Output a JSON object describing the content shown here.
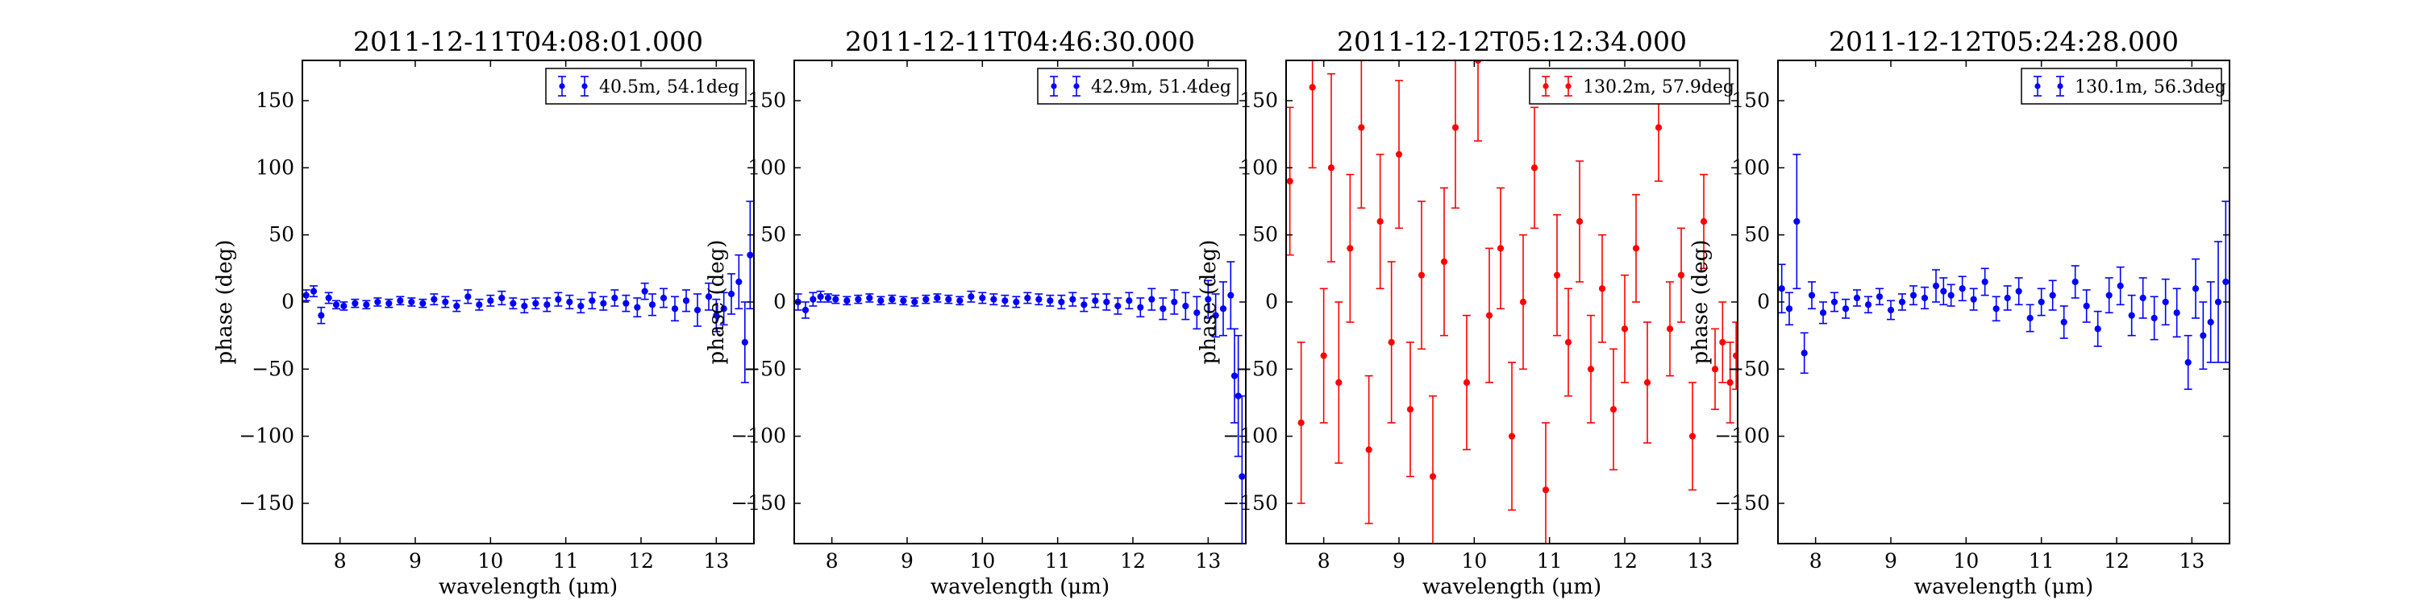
{
  "figure": {
    "background": "#ffffff"
  },
  "chart_data": [
    {
      "type": "scatter",
      "title": "2011-12-11T04:08:01.000",
      "xlabel": "wavelength (μm)",
      "ylabel": "phase (deg)",
      "xlim": [
        7.5,
        13.5
      ],
      "ylim": [
        -180,
        180
      ],
      "xticks": [
        8,
        9,
        10,
        11,
        12,
        13
      ],
      "yticks": [
        -150,
        -100,
        -50,
        0,
        50,
        100,
        150
      ],
      "ytick_labels": [
        "−150",
        "−100",
        "−50",
        "0",
        "50",
        "100",
        "150"
      ],
      "grid": false,
      "legend_position": "top-right",
      "series": [
        {
          "name": "40.5m, 54.1deg",
          "color": "#0000ff",
          "x": [
            7.55,
            7.65,
            7.75,
            7.85,
            7.95,
            8.05,
            8.2,
            8.35,
            8.5,
            8.65,
            8.8,
            8.95,
            9.1,
            9.25,
            9.4,
            9.55,
            9.7,
            9.85,
            10.0,
            10.15,
            10.3,
            10.45,
            10.6,
            10.75,
            10.9,
            11.05,
            11.2,
            11.35,
            11.5,
            11.65,
            11.8,
            11.95,
            12.05,
            12.15,
            12.3,
            12.45,
            12.6,
            12.75,
            12.9,
            13.0,
            13.1,
            13.2,
            13.3,
            13.38,
            13.45
          ],
          "y": [
            5,
            8,
            -10,
            3,
            -2,
            -3,
            -1,
            -2,
            0,
            -1,
            1,
            0,
            -1,
            2,
            0,
            -3,
            4,
            -2,
            1,
            3,
            -1,
            -3,
            -1,
            -2,
            2,
            0,
            -3,
            1,
            -1,
            3,
            -1,
            -4,
            8,
            -2,
            3,
            -5,
            1,
            -6,
            4,
            -10,
            -5,
            6,
            15,
            -30,
            35
          ],
          "err": [
            4,
            4,
            6,
            4,
            3,
            3,
            3,
            3,
            3,
            3,
            3,
            3,
            3,
            4,
            4,
            4,
            5,
            4,
            4,
            5,
            4,
            5,
            4,
            5,
            5,
            5,
            5,
            6,
            5,
            6,
            6,
            7,
            6,
            8,
            7,
            9,
            8,
            12,
            10,
            12,
            12,
            15,
            20,
            30,
            40
          ]
        }
      ]
    },
    {
      "type": "scatter",
      "title": "2011-12-11T04:46:30.000",
      "xlabel": "wavelength (μm)",
      "ylabel": "phase (deg)",
      "xlim": [
        7.5,
        13.5
      ],
      "ylim": [
        -180,
        180
      ],
      "xticks": [
        8,
        9,
        10,
        11,
        12,
        13
      ],
      "yticks": [
        -150,
        -100,
        -50,
        0,
        50,
        100,
        150
      ],
      "ytick_labels": [
        "−150",
        "−100",
        "−50",
        "0",
        "50",
        "100",
        "150"
      ],
      "grid": false,
      "legend_position": "top-right",
      "series": [
        {
          "name": "42.9m, 51.4deg",
          "color": "#0000ff",
          "x": [
            7.55,
            7.65,
            7.75,
            7.85,
            7.95,
            8.05,
            8.2,
            8.35,
            8.5,
            8.65,
            8.8,
            8.95,
            9.1,
            9.25,
            9.4,
            9.55,
            9.7,
            9.85,
            10.0,
            10.15,
            10.3,
            10.45,
            10.6,
            10.75,
            10.9,
            11.05,
            11.2,
            11.35,
            11.5,
            11.65,
            11.8,
            11.95,
            12.1,
            12.25,
            12.4,
            12.55,
            12.7,
            12.85,
            13.0,
            13.1,
            13.2,
            13.3,
            13.35,
            13.4,
            13.45
          ],
          "y": [
            0,
            -6,
            2,
            4,
            3,
            2,
            1,
            2,
            3,
            1,
            2,
            1,
            0,
            2,
            3,
            2,
            1,
            4,
            3,
            2,
            1,
            0,
            3,
            2,
            1,
            0,
            2,
            -2,
            1,
            0,
            -3,
            1,
            -4,
            2,
            -5,
            0,
            -3,
            -8,
            2,
            -10,
            -5,
            5,
            -55,
            -70,
            -130
          ],
          "err": [
            6,
            6,
            5,
            4,
            3,
            3,
            3,
            3,
            3,
            3,
            3,
            3,
            3,
            3,
            3,
            3,
            3,
            4,
            4,
            4,
            4,
            4,
            4,
            4,
            4,
            5,
            5,
            5,
            5,
            6,
            6,
            6,
            7,
            8,
            8,
            9,
            10,
            12,
            14,
            16,
            20,
            25,
            35,
            45,
            60
          ]
        }
      ]
    },
    {
      "type": "scatter",
      "title": "2011-12-12T05:12:34.000",
      "xlabel": "wavelength (μm)",
      "ylabel": "phase (deg)",
      "xlim": [
        7.5,
        13.5
      ],
      "ylim": [
        -180,
        180
      ],
      "xticks": [
        8,
        9,
        10,
        11,
        12,
        13
      ],
      "yticks": [
        -150,
        -100,
        -50,
        0,
        50,
        100,
        150
      ],
      "ytick_labels": [
        "−150",
        "−100",
        "−50",
        "0",
        "50",
        "100",
        "150"
      ],
      "grid": false,
      "legend_position": "top-right",
      "series": [
        {
          "name": "130.2m, 57.9deg",
          "color": "#ff0000",
          "x": [
            7.55,
            7.7,
            7.85,
            8.0,
            8.1,
            8.2,
            8.35,
            8.5,
            8.6,
            8.75,
            8.9,
            9.0,
            9.15,
            9.3,
            9.45,
            9.6,
            9.75,
            9.9,
            10.05,
            10.2,
            10.35,
            10.5,
            10.65,
            10.8,
            10.95,
            11.1,
            11.25,
            11.4,
            11.55,
            11.7,
            11.85,
            12.0,
            12.15,
            12.3,
            12.45,
            12.6,
            12.75,
            12.9,
            13.05,
            13.2,
            13.3,
            13.4,
            13.48
          ],
          "y": [
            90,
            -90,
            160,
            -40,
            100,
            -60,
            40,
            130,
            -110,
            60,
            -30,
            110,
            -80,
            20,
            -130,
            30,
            130,
            -60,
            180,
            -10,
            40,
            -100,
            0,
            100,
            -140,
            20,
            -30,
            60,
            -50,
            10,
            -80,
            -20,
            40,
            -60,
            130,
            -20,
            20,
            -100,
            60,
            -50,
            -30,
            -60,
            -40
          ],
          "err": [
            55,
            60,
            60,
            50,
            70,
            60,
            55,
            60,
            55,
            50,
            60,
            55,
            50,
            55,
            60,
            55,
            60,
            50,
            60,
            50,
            45,
            55,
            50,
            45,
            50,
            45,
            40,
            45,
            40,
            40,
            45,
            40,
            40,
            45,
            40,
            35,
            35,
            40,
            35,
            30,
            30,
            30,
            25
          ]
        }
      ]
    },
    {
      "type": "scatter",
      "title": "2011-12-12T05:24:28.000",
      "xlabel": "wavelength (μm)",
      "ylabel": "phase (deg)",
      "xlim": [
        7.5,
        13.5
      ],
      "ylim": [
        -180,
        180
      ],
      "xticks": [
        8,
        9,
        10,
        11,
        12,
        13
      ],
      "yticks": [
        -150,
        -100,
        -50,
        0,
        50,
        100,
        150
      ],
      "ytick_labels": [
        "−150",
        "−100",
        "−50",
        "0",
        "50",
        "100",
        "150"
      ],
      "grid": false,
      "legend_position": "top-right",
      "series": [
        {
          "name": "130.1m, 56.3deg",
          "color": "#0000ff",
          "x": [
            7.55,
            7.65,
            7.75,
            7.85,
            7.95,
            8.1,
            8.25,
            8.4,
            8.55,
            8.7,
            8.85,
            9.0,
            9.15,
            9.3,
            9.45,
            9.6,
            9.7,
            9.8,
            9.95,
            10.1,
            10.25,
            10.4,
            10.55,
            10.7,
            10.85,
            11.0,
            11.15,
            11.3,
            11.45,
            11.6,
            11.75,
            11.9,
            12.05,
            12.2,
            12.35,
            12.5,
            12.65,
            12.8,
            12.95,
            13.05,
            13.15,
            13.25,
            13.35,
            13.45
          ],
          "y": [
            10,
            -5,
            60,
            -38,
            5,
            -8,
            0,
            -5,
            3,
            -2,
            4,
            -6,
            0,
            5,
            3,
            12,
            8,
            5,
            10,
            2,
            15,
            -5,
            3,
            8,
            -12,
            0,
            5,
            -15,
            15,
            -3,
            -20,
            5,
            12,
            -10,
            3,
            -12,
            0,
            -8,
            -45,
            10,
            -25,
            -15,
            0,
            15
          ],
          "err": [
            18,
            12,
            50,
            15,
            10,
            8,
            7,
            7,
            6,
            6,
            6,
            7,
            6,
            7,
            8,
            12,
            10,
            8,
            9,
            8,
            10,
            9,
            9,
            10,
            10,
            10,
            11,
            12,
            12,
            12,
            13,
            13,
            14,
            15,
            15,
            16,
            17,
            18,
            20,
            22,
            25,
            30,
            45,
            60
          ]
        }
      ]
    }
  ]
}
